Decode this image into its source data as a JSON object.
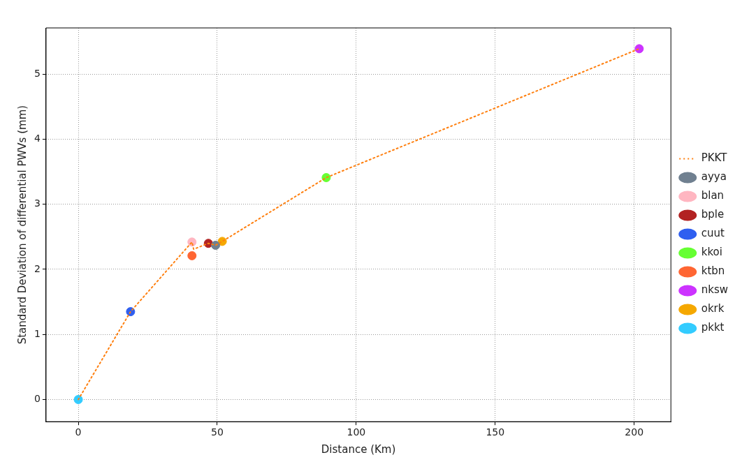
{
  "chart_data": {
    "type": "scatter",
    "xlabel": "Distance (Km)",
    "ylabel": "Standard Deviation of differential PWVs (mm)",
    "marker": "circle",
    "grid": true,
    "legend": "right",
    "xlim": [
      -11.6,
      213.2
    ],
    "xticks": [
      0,
      50,
      100,
      150,
      200
    ],
    "ylim": [
      -0.34,
      5.71
    ],
    "yticks": [
      0,
      1,
      2,
      3,
      4,
      5
    ],
    "series": [
      {
        "name": "PKKT",
        "type": "line",
        "line_style": "dotted",
        "marker": "none",
        "color": "#ff7f0e",
        "x": [
          0,
          18.8,
          40.9,
          41.5,
          46.8,
          49.4,
          51.8,
          89.2,
          201.8
        ],
        "values": [
          0,
          1.35,
          2.42,
          2.31,
          2.4,
          2.37,
          2.43,
          3.41,
          5.39
        ]
      },
      {
        "name": "ayya",
        "color": "#708090",
        "x": [
          49.4
        ],
        "values": [
          2.37
        ]
      },
      {
        "name": "blan",
        "color": "#ffb6c1",
        "x": [
          40.9
        ],
        "values": [
          2.42
        ]
      },
      {
        "name": "bple",
        "color": "#b22222",
        "x": [
          46.8
        ],
        "values": [
          2.4
        ]
      },
      {
        "name": "cuut",
        "color": "#2f5ff0",
        "x": [
          18.8
        ],
        "values": [
          1.35
        ]
      },
      {
        "name": "kkoi",
        "color": "#66ff33",
        "x": [
          89.2
        ],
        "values": [
          3.41
        ]
      },
      {
        "name": "ktbn",
        "color": "#ff6633",
        "x": [
          40.9
        ],
        "values": [
          2.21
        ]
      },
      {
        "name": "nksw",
        "color": "#cc33ff",
        "x": [
          201.8
        ],
        "values": [
          5.39
        ]
      },
      {
        "name": "okrk",
        "color": "#f5a800",
        "x": [
          51.8
        ],
        "values": [
          2.43
        ]
      },
      {
        "name": "pkkt",
        "color": "#33ccff",
        "x": [
          0
        ],
        "values": [
          0
        ]
      }
    ]
  }
}
